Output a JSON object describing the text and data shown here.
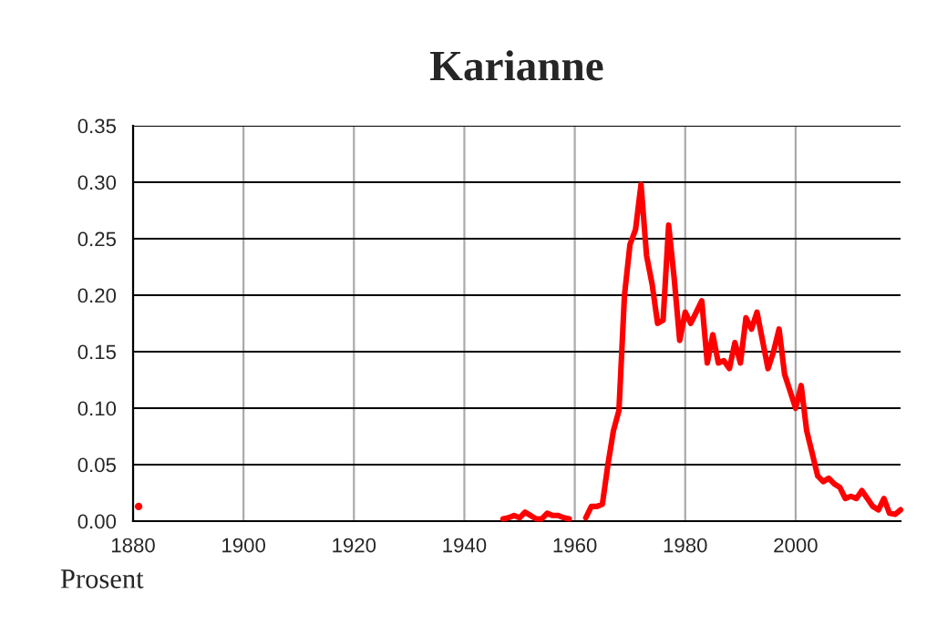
{
  "chart_data": {
    "type": "line",
    "title": "Karianne",
    "ylabel": "Prosent",
    "x": [
      1947,
      1948,
      1949,
      1950,
      1951,
      1952,
      1953,
      1954,
      1955,
      1956,
      1957,
      1958,
      1959,
      1960,
      1962,
      1963,
      1964,
      1965,
      1966,
      1967,
      1968,
      1969,
      1970,
      1971,
      1972,
      1973,
      1974,
      1975,
      1976,
      1977,
      1978,
      1979,
      1980,
      1981,
      1982,
      1983,
      1984,
      1985,
      1986,
      1987,
      1988,
      1989,
      1990,
      1991,
      1992,
      1993,
      1994,
      1995,
      1996,
      1997,
      1998,
      1999,
      2000,
      2001,
      2002,
      2003,
      2004,
      2005,
      2006,
      2007,
      2008,
      2009,
      2010,
      2011,
      2012,
      2013,
      2014,
      2015,
      2016,
      2017,
      2018,
      2019
    ],
    "series": [
      {
        "type": "scatter",
        "marker": "circle",
        "x": [
          1881
        ],
        "color": "#ff0000",
        "values": [
          0.013
        ]
      },
      {
        "color": "#ff0000",
        "values": [
          0.002,
          0.003,
          0.005,
          0.003,
          0.008,
          0.005,
          0.002,
          0.002,
          0.007,
          0.005,
          0.005,
          0.003,
          0.002,
          null,
          0.003,
          0.013,
          0.013,
          0.015,
          0.05,
          0.08,
          0.098,
          0.2,
          0.245,
          0.258,
          0.298,
          0.235,
          0.21,
          0.175,
          0.178,
          0.262,
          0.215,
          0.16,
          0.185,
          0.175,
          0.185,
          0.195,
          0.14,
          0.165,
          0.14,
          0.142,
          0.135,
          0.158,
          0.14,
          0.18,
          0.17,
          0.185,
          0.16,
          0.135,
          0.15,
          0.17,
          0.13,
          0.115,
          0.1,
          0.12,
          0.08,
          0.06,
          0.04,
          0.035,
          0.038,
          0.033,
          0.03,
          0.02,
          0.022,
          0.02,
          0.027,
          0.02,
          0.013,
          0.01,
          0.02,
          0.007,
          0.006,
          0.01
        ]
      }
    ],
    "xlim": [
      1880,
      2019
    ],
    "xticks": [
      1880,
      1900,
      1920,
      1940,
      1960,
      1980,
      2000
    ],
    "ylim": [
      0,
      0.35
    ],
    "yticks": [
      {
        "value": 0,
        "label": "0.00"
      },
      {
        "value": 0.05,
        "label": "0.05"
      },
      {
        "value": 0.1,
        "label": "0.10"
      },
      {
        "value": 0.15,
        "label": "0.15"
      },
      {
        "value": 0.2,
        "label": "0.20"
      },
      {
        "value": 0.25,
        "label": "0.25"
      },
      {
        "value": 0.3,
        "label": "0.30"
      },
      {
        "value": 0.35,
        "label": "0.35"
      }
    ],
    "grid": true,
    "line_style": "solid",
    "marker": "none",
    "legend": false
  }
}
